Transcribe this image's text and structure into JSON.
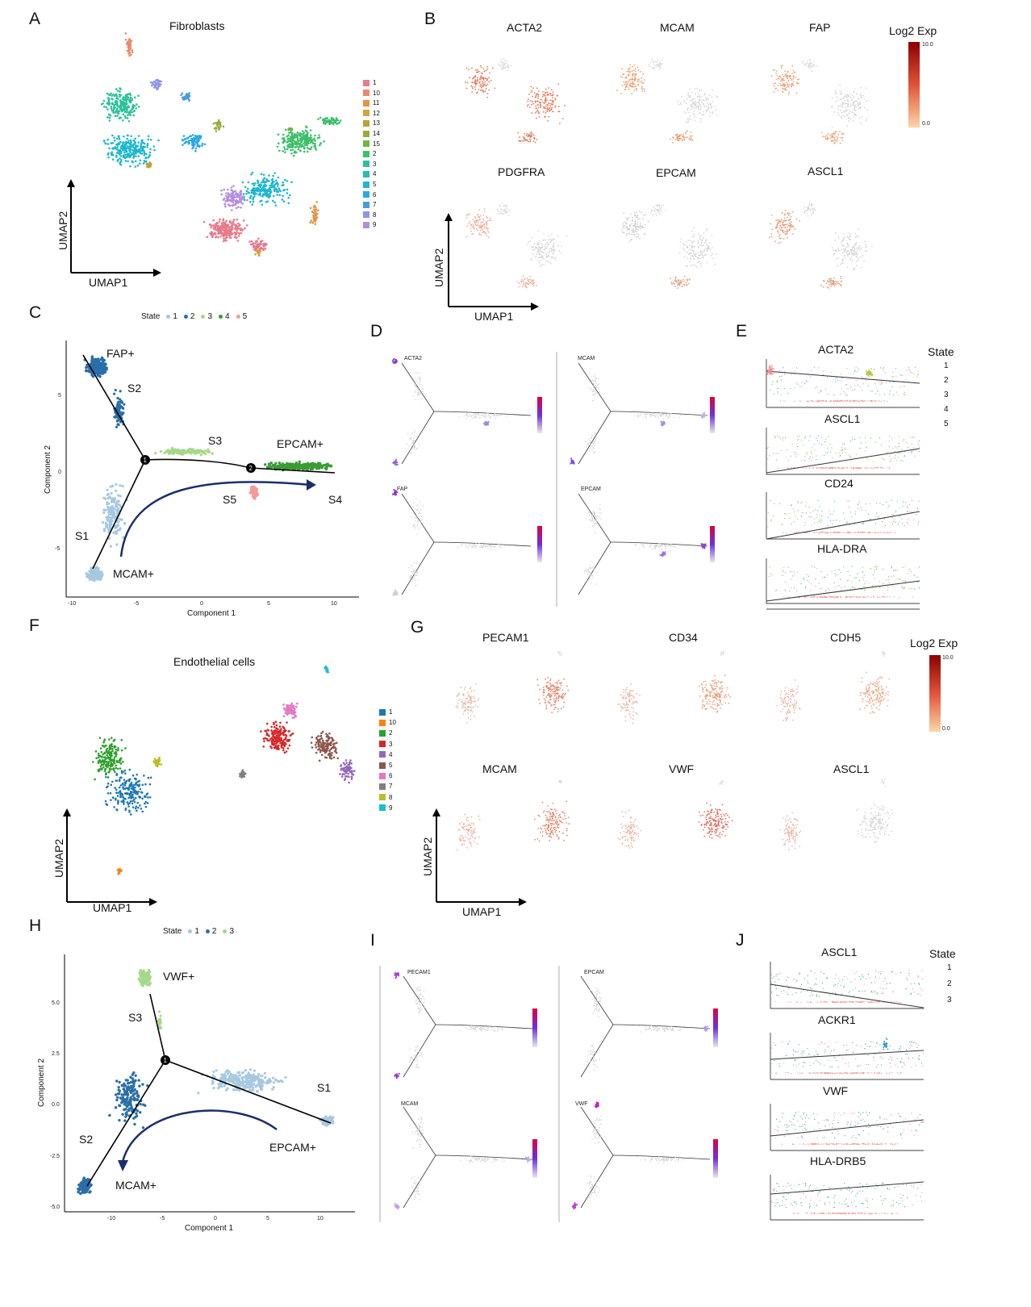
{
  "panels": {
    "A": {
      "letter": "A",
      "title": "Fibroblasts",
      "x_axis": "UMAP1",
      "y_axis": "UMAP2",
      "legend": [
        {
          "label": "1",
          "color": "#e87a8a"
        },
        {
          "label": "10",
          "color": "#e88a6c"
        },
        {
          "label": "11",
          "color": "#e39446"
        },
        {
          "label": "12",
          "color": "#d7a337"
        },
        {
          "label": "13",
          "color": "#b8a43a"
        },
        {
          "label": "14",
          "color": "#9aab3b"
        },
        {
          "label": "15",
          "color": "#6cb847"
        },
        {
          "label": "2",
          "color": "#3fbf6b"
        },
        {
          "label": "3",
          "color": "#2cc09c"
        },
        {
          "label": "4",
          "color": "#22bdb4"
        },
        {
          "label": "5",
          "color": "#1fb6cf"
        },
        {
          "label": "6",
          "color": "#2aa9e0"
        },
        {
          "label": "7",
          "color": "#4a9ae3"
        },
        {
          "label": "8",
          "color": "#8c95e6"
        },
        {
          "label": "9",
          "color": "#b38de0"
        }
      ]
    },
    "B": {
      "letter": "B",
      "genes": [
        "ACTA2",
        "MCAM",
        "FAP",
        "PDGFRA",
        "EPCAM",
        "ASCL1"
      ],
      "scale_title": "Log2 Exp",
      "scale_max": "10.0",
      "scale_min": "0.0",
      "x_axis": "UMAP1",
      "y_axis": "UMAP2"
    },
    "C": {
      "letter": "C",
      "legend_title": "State",
      "states": [
        "1",
        "2",
        "3",
        "4",
        "5"
      ],
      "state_colors": [
        "#a6c8e0",
        "#2a6fa8",
        "#a6d88a",
        "#3b9b35",
        "#f49a9a"
      ],
      "labels": {
        "fap": "FAP+",
        "s2": "S2",
        "s3": "S3",
        "epcam": "EPCAM+",
        "s5": "S5",
        "s4": "S4",
        "s1": "S1",
        "mcam": "MCAM+",
        "node1": "1",
        "node2": "2"
      },
      "x_axis": "Component 1",
      "y_axis": "Component 2",
      "x_ticks": [
        "-10",
        "-5",
        "0",
        "5",
        "10"
      ],
      "y_ticks": [
        "5",
        "0",
        "-5"
      ]
    },
    "D": {
      "letter": "D",
      "genes": [
        "ACTA2",
        "MCAM",
        "FAP",
        "EPCAM"
      ]
    },
    "E": {
      "letter": "E",
      "genes": [
        "ACTA2",
        "ASCL1",
        "CD24",
        "HLA-DRA"
      ],
      "legend_title": "State",
      "states": [
        "1",
        "2",
        "3",
        "4",
        "5"
      ]
    },
    "F": {
      "letter": "F",
      "title": "Endothelial cells",
      "x_axis": "UMAP1",
      "y_axis": "UMAP2",
      "legend": [
        {
          "label": "1",
          "color": "#1f77b4"
        },
        {
          "label": "10",
          "color": "#ff7f0e"
        },
        {
          "label": "2",
          "color": "#2ca02c"
        },
        {
          "label": "3",
          "color": "#d62728"
        },
        {
          "label": "4",
          "color": "#9467bd"
        },
        {
          "label": "5",
          "color": "#8c564b"
        },
        {
          "label": "6",
          "color": "#e377c2"
        },
        {
          "label": "7",
          "color": "#7f7f7f"
        },
        {
          "label": "8",
          "color": "#bcbd22"
        },
        {
          "label": "9",
          "color": "#17becf"
        }
      ]
    },
    "G": {
      "letter": "G",
      "genes": [
        "PECAM1",
        "CD34",
        "CDH5",
        "MCAM",
        "VWF",
        "ASCL1"
      ],
      "scale_title": "Log2 Exp",
      "scale_max": "10.0",
      "scale_min": "0.0",
      "x_axis": "UMAP1",
      "y_axis": "UMAP2"
    },
    "H": {
      "letter": "H",
      "legend_title": "State",
      "states": [
        "1",
        "2",
        "3"
      ],
      "state_colors": [
        "#a6c8e0",
        "#2a6fa8",
        "#a6d88a"
      ],
      "labels": {
        "vwf": "VWF+",
        "s3": "S3",
        "s1": "S1",
        "s2": "S2",
        "epcam": "EPCAM+",
        "mcam": "MCAM+",
        "node1": "1"
      },
      "x_axis": "Component 1",
      "y_axis": "Component 2",
      "x_ticks": [
        "-10",
        "-5",
        "0",
        "5",
        "10"
      ],
      "y_ticks": [
        "5.0",
        "2.5",
        "0.0",
        "-2.5",
        "-5.0"
      ]
    },
    "I": {
      "letter": "I",
      "genes": [
        "PECAM1",
        "EPCAM",
        "MCAM",
        "VWF"
      ]
    },
    "J": {
      "letter": "J",
      "genes": [
        "ASCL1",
        "ACKR1",
        "VWF",
        "HLA-DRB5"
      ],
      "legend_title": "State",
      "states": [
        "1",
        "2",
        "3"
      ]
    }
  }
}
